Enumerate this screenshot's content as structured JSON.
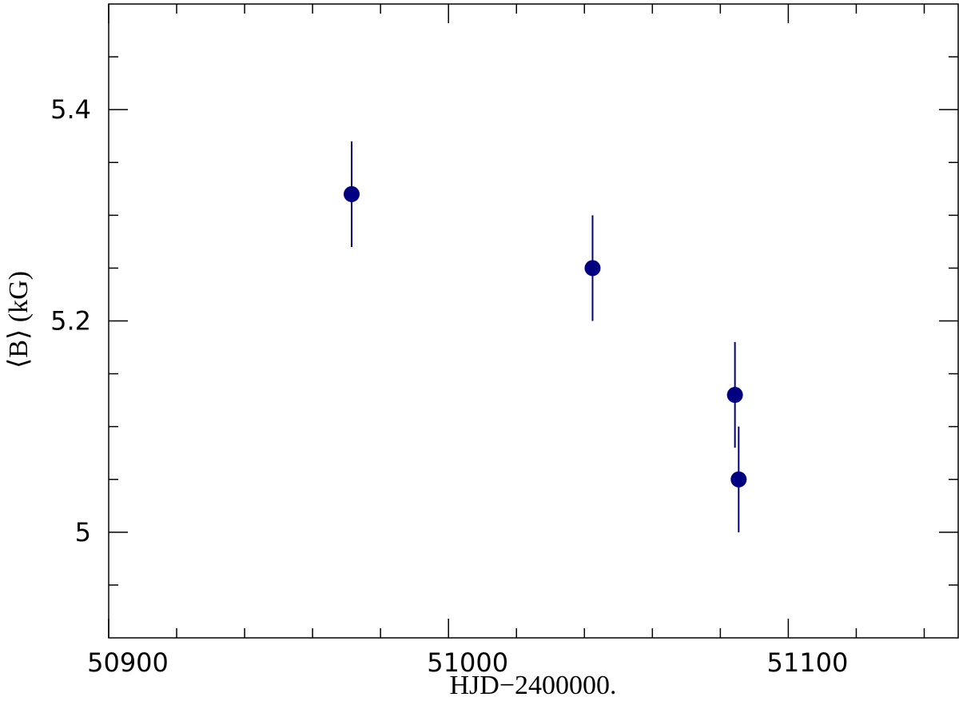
{
  "chart_data": {
    "type": "scatter",
    "x_label": "HJD−2400000.",
    "y_label": "⟨B⟩ (kG)",
    "x": [
      50971.5,
      51042.4,
      51084.3,
      51085.4
    ],
    "values": [
      5.32,
      5.25,
      5.13,
      5.05
    ],
    "errors": [
      0.05,
      0.05,
      0.05,
      0.05
    ],
    "color": "#000080",
    "xlim": [
      50900,
      51150
    ],
    "ylim": [
      4.9,
      5.5
    ],
    "xticks": [
      50900,
      51000,
      51100
    ],
    "yticks": [
      {
        "value": 5.4,
        "label": "5.4"
      },
      {
        "value": 5.2,
        "label": "5.2"
      },
      {
        "value": 5,
        "label": "5"
      }
    ],
    "xticks_minor": [
      50920,
      50940,
      50960,
      50980,
      51020,
      51040,
      51060,
      51080,
      51120,
      51140
    ],
    "yticks_minor": [
      4.95,
      5.05,
      5.1,
      5.15,
      5.25,
      5.3,
      5.35,
      5.45
    ]
  }
}
